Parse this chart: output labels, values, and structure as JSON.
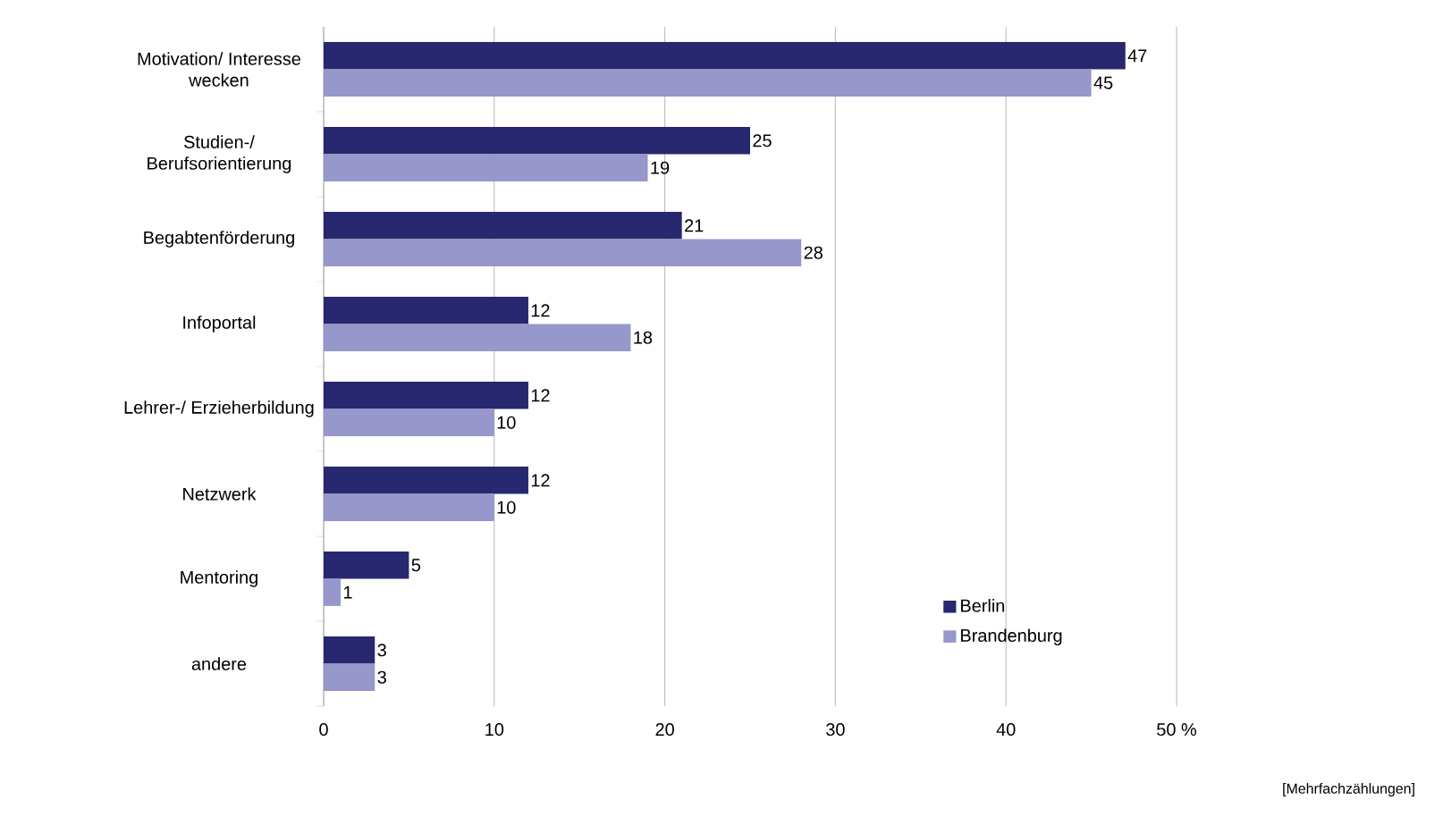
{
  "chart_data": {
    "type": "bar",
    "orientation": "horizontal",
    "categories": [
      "Motivation/ Interesse wecken",
      "Studien-/ Berufsorientierung",
      "Begabtenförderung",
      "Infoportal",
      "Lehrer-/ Erzieherbildung",
      "Netzwerk",
      "Mentoring",
      "andere"
    ],
    "series": [
      {
        "name": "Berlin",
        "color": "#27286f",
        "values": [
          47,
          25,
          21,
          12,
          12,
          12,
          5,
          3
        ]
      },
      {
        "name": "Brandenburg",
        "color": "#9797cc",
        "values": [
          45,
          19,
          28,
          18,
          10,
          10,
          1,
          3
        ]
      }
    ],
    "xlim": [
      0,
      50
    ],
    "xticks": [
      0,
      10,
      20,
      30,
      40,
      {
        "value": 50,
        "label": "50 %"
      }
    ],
    "grid": "x",
    "legend": "bottom right",
    "data_labels": true,
    "annotations": [
      "[Mehrfachzählungen]"
    ]
  }
}
